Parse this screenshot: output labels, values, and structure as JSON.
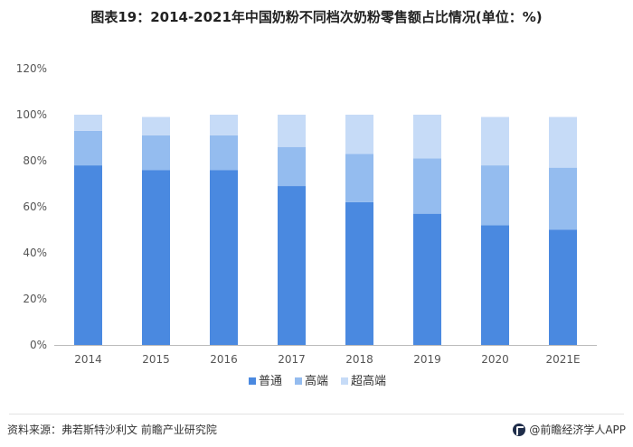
{
  "title": "图表19：2014-2021年中国奶粉不同档次奶粉零售额占比情况(单位：%)",
  "source": "资料来源：弗若斯特沙利文 前瞻产业研究院",
  "brand": "@前瞻经济学人APP",
  "colors": {
    "普通": "#4a89e0",
    "高端": "#94bcef",
    "超高端": "#c6dbf7"
  },
  "chart_data": {
    "type": "bar",
    "stacked": true,
    "title": "图表19：2014-2021年中国奶粉不同档次奶粉零售额占比情况(单位：%)",
    "categories": [
      "2014",
      "2015",
      "2016",
      "2017",
      "2018",
      "2019",
      "2020",
      "2021E"
    ],
    "series": [
      {
        "name": "普通",
        "values": [
          78,
          76,
          76,
          69,
          62,
          57,
          52,
          50
        ]
      },
      {
        "name": "高端",
        "values": [
          15,
          15,
          15,
          17,
          21,
          24,
          26,
          27
        ]
      },
      {
        "name": "超高端",
        "values": [
          7,
          8,
          9,
          14,
          17,
          19,
          21,
          22
        ]
      }
    ],
    "ylim": [
      0,
      120
    ],
    "yticks": [
      "0%",
      "20%",
      "40%",
      "60%",
      "80%",
      "100%",
      "120%"
    ],
    "grid": false,
    "legend": "bottom"
  }
}
